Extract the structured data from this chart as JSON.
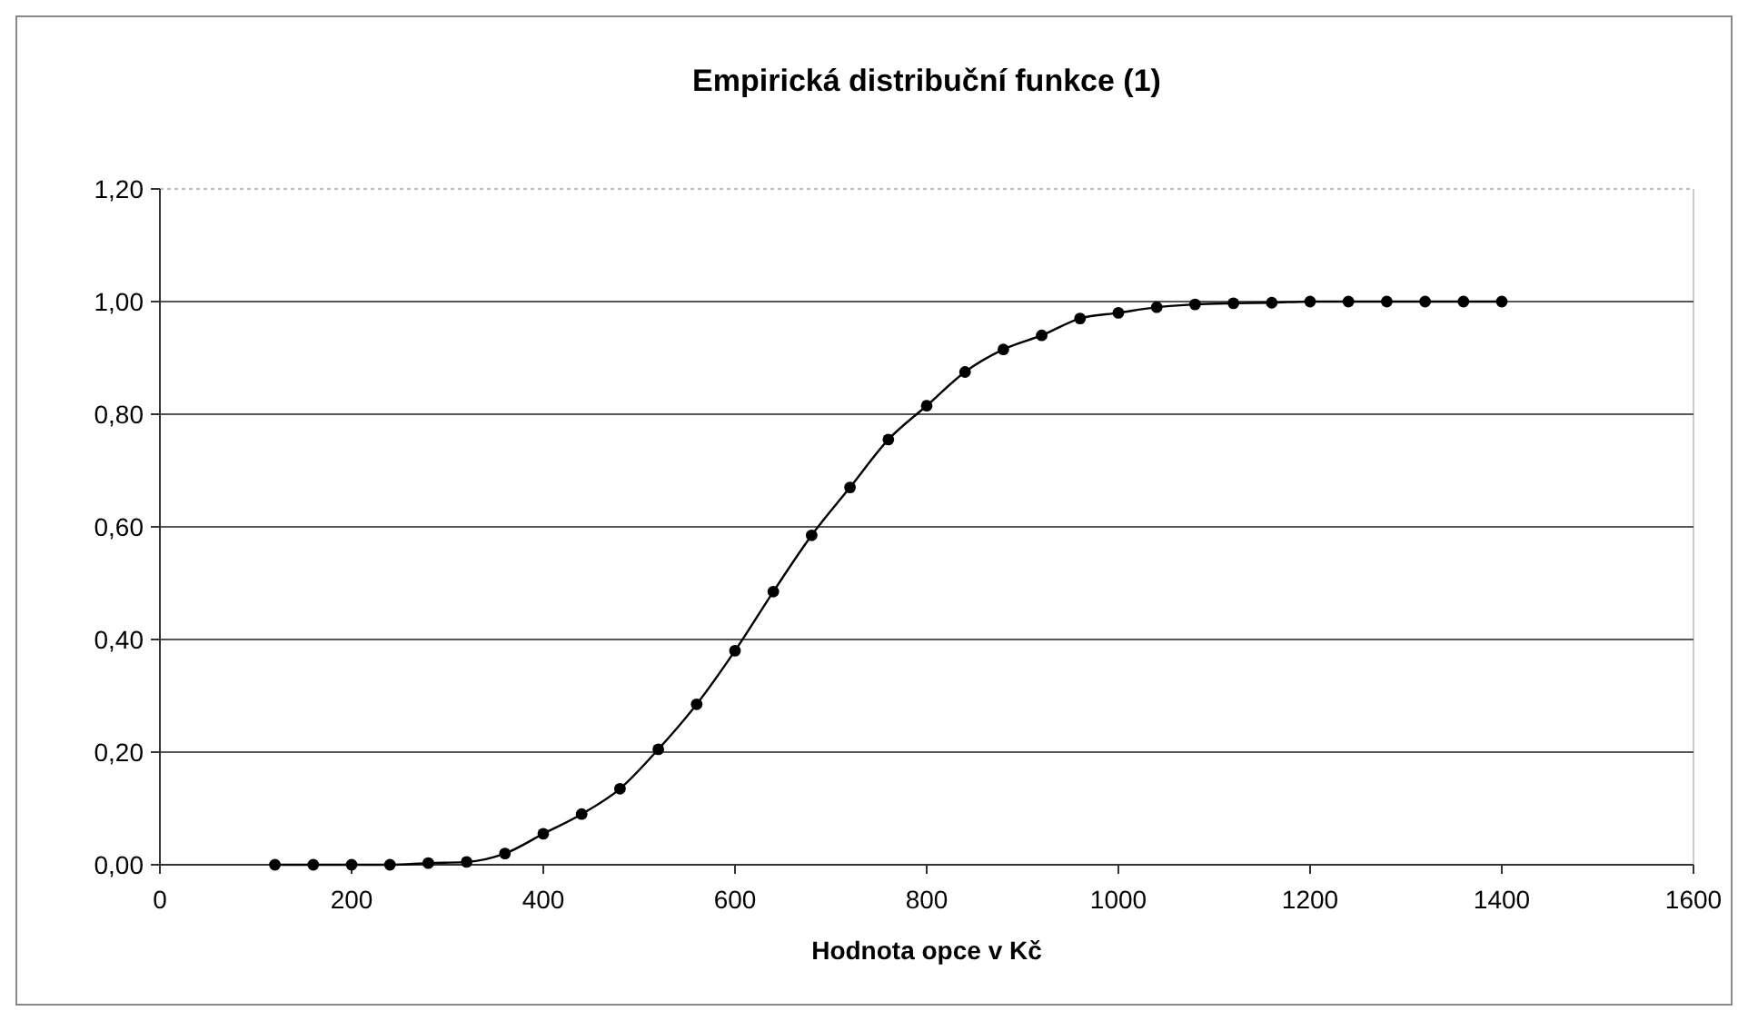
{
  "chart_data": {
    "type": "line",
    "title": "Empirická distribuční funkce (1)",
    "xlabel": "Hodnota opce v Kč",
    "x": [
      120,
      160,
      200,
      240,
      280,
      320,
      360,
      400,
      440,
      480,
      520,
      560,
      600,
      640,
      680,
      720,
      760,
      800,
      840,
      880,
      920,
      960,
      1000,
      1040,
      1080,
      1120,
      1160,
      1200,
      1240,
      1280,
      1320,
      1360,
      1400
    ],
    "series": [
      {
        "color": "#000000",
        "values": [
          0,
          0,
          0,
          0,
          0.003,
          0.005,
          0.02,
          0.055,
          0.09,
          0.135,
          0.205,
          0.285,
          0.38,
          0.485,
          0.585,
          0.67,
          0.755,
          0.815,
          0.875,
          0.915,
          0.94,
          0.97,
          0.98,
          0.99,
          0.995,
          0.997,
          0.998,
          1,
          1,
          1,
          1,
          1,
          1
        ]
      }
    ],
    "xlim": [
      0,
      1600
    ],
    "xticks": [
      0,
      200,
      400,
      600,
      800,
      1000,
      1200,
      1400,
      1600
    ],
    "ylim": [
      0,
      1.2
    ],
    "yticks": [
      {
        "value": 0,
        "label": "0,00"
      },
      {
        "value": 0.2,
        "label": "0,20"
      },
      {
        "value": 0.4,
        "label": "0,40"
      },
      {
        "value": 0.6,
        "label": "0,60"
      },
      {
        "value": 0.8,
        "label": "0,80"
      },
      {
        "value": 1,
        "label": "1,00"
      },
      {
        "value": 1.2,
        "label": "1,20"
      }
    ],
    "grid": "y",
    "marker": "circle",
    "line_style": "solid"
  }
}
